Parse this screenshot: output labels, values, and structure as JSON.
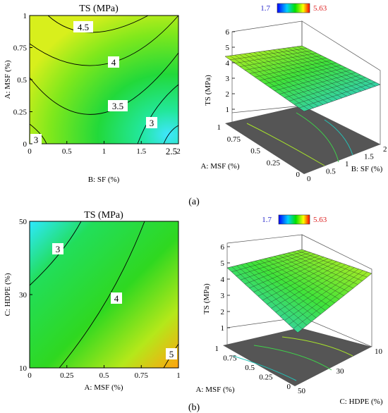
{
  "chart_data": [
    {
      "panel": "a",
      "type": "contour",
      "title": "TS (MPa)",
      "xlabel": "B: SF (%)",
      "ylabel": "A: MSF (%)",
      "xlim": [
        0,
        2
      ],
      "ylim": [
        0,
        1
      ],
      "x_ticks": [
        "0",
        "0.5",
        "1",
        "1.5",
        "2"
      ],
      "y_ticks": [
        "0",
        "0.25",
        "0.5",
        "0.75",
        "1"
      ],
      "contour_labels": [
        "4.5",
        "4",
        "3.5",
        "3",
        "3",
        "2.5"
      ],
      "contour_levels": [
        2.5,
        3,
        3.5,
        4,
        4.5
      ]
    },
    {
      "panel": "a",
      "type": "surface",
      "zlabel": "TS (MPa)",
      "xlabel": "B: SF (%)",
      "ylabel": "A: MSF (%)",
      "z_ticks": [
        "1",
        "2",
        "3",
        "4",
        "5",
        "6"
      ],
      "x_ticks": [
        "0",
        "0.5",
        "1",
        "1.5",
        "2"
      ],
      "y_ticks": [
        "0",
        "0.25",
        "0.5",
        "0.75",
        "1"
      ],
      "colorbar": {
        "min": "1.7",
        "max": "5.63",
        "min_color": "#0000ff",
        "max_color": "#ff0000"
      }
    },
    {
      "panel": "b",
      "type": "contour",
      "title": "TS (MPa)",
      "xlabel": "A: MSF (%)",
      "ylabel": "C: HDPE (%)",
      "xlim": [
        0,
        1
      ],
      "ylim": [
        10,
        50
      ],
      "x_ticks": [
        "0",
        "0.25",
        "0.5",
        "0.75",
        "1"
      ],
      "y_ticks": [
        "10",
        "30",
        "50"
      ],
      "contour_labels": [
        "3",
        "4",
        "5"
      ],
      "contour_levels": [
        3,
        4,
        5
      ]
    },
    {
      "panel": "b",
      "type": "surface",
      "zlabel": "TS (MPa)",
      "xlabel": "C: HDPE (%)",
      "ylabel": "A: MSF (%)",
      "z_ticks": [
        "1",
        "2",
        "3",
        "4",
        "5",
        "6"
      ],
      "x_ticks": [
        "10",
        "30",
        "50"
      ],
      "y_ticks": [
        "0",
        "0.25",
        "0.5",
        "0.75",
        "1"
      ],
      "colorbar": {
        "min": "1.7",
        "max": "5.63",
        "min_color": "#0000ff",
        "max_color": "#ff0000"
      }
    }
  ],
  "panel_labels": {
    "a": "(a)",
    "b": "(b)"
  }
}
